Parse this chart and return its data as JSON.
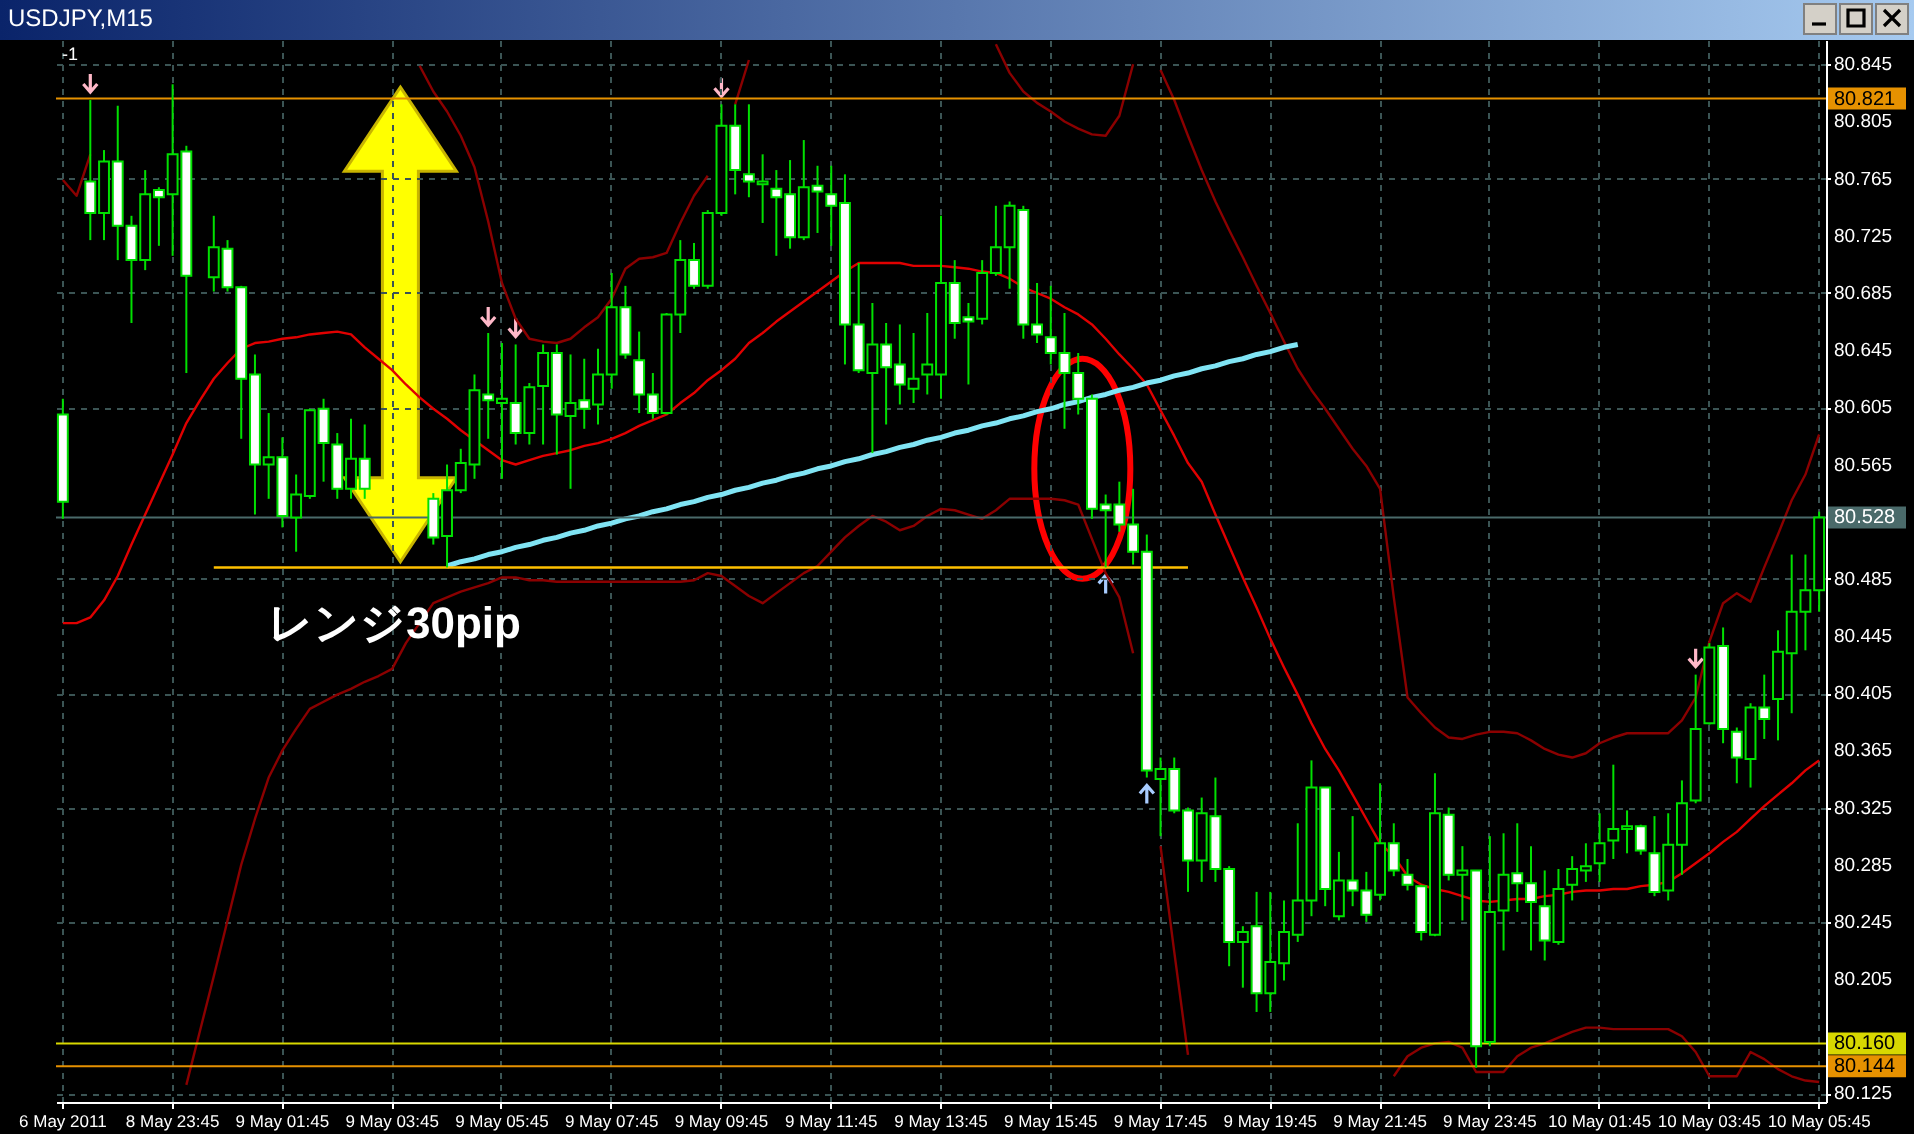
{
  "chart_data": {
    "type": "candlestick",
    "title": "USDJPY,M15",
    "annotations": [
      "レンジ30pip",
      "-1"
    ],
    "categories": [
      "6 May 2011",
      null,
      null,
      null,
      null,
      null,
      null,
      null,
      "8 May 23:45",
      null,
      null,
      null,
      null,
      null,
      null,
      null,
      "9 May 01:45",
      null,
      null,
      null,
      null,
      null,
      null,
      null,
      "9 May 03:45",
      null,
      null,
      null,
      null,
      null,
      null,
      null,
      "9 May 05:45",
      null,
      null,
      null,
      null,
      null,
      null,
      null,
      "9 May 07:45",
      null,
      null,
      null,
      null,
      null,
      null,
      null,
      "9 May 09:45",
      null,
      null,
      null,
      null,
      null,
      null,
      null,
      "9 May 11:45",
      null,
      null,
      null,
      null,
      null,
      null,
      null,
      "9 May 13:45",
      null,
      null,
      null,
      null,
      null,
      null,
      null,
      "9 May 15:45",
      null,
      null,
      null,
      null,
      null,
      null,
      null,
      "9 May 17:45",
      null,
      null,
      null,
      null,
      null,
      null,
      null,
      "9 May 19:45",
      null,
      null,
      null,
      null,
      null,
      null,
      null,
      "9 May 21:45",
      null,
      null,
      null,
      null,
      null,
      null,
      null,
      "9 May 23:45",
      null,
      null,
      null,
      null,
      null,
      null,
      null,
      "10 May 01:45",
      null,
      null,
      null,
      null,
      null,
      null,
      null,
      "10 May 03:45",
      null,
      null,
      null,
      null,
      null,
      null,
      null,
      "10 May 05:45"
    ],
    "ylim": [
      80.119,
      80.862
    ],
    "yticks": [
      80.845,
      80.805,
      80.765,
      80.725,
      80.685,
      80.645,
      80.605,
      80.565,
      80.485,
      80.445,
      80.405,
      80.365,
      80.325,
      80.285,
      80.245,
      80.205,
      80.125
    ],
    "grid": true,
    "ref_lines": [
      {
        "axis": "y",
        "value": 80.821,
        "label": "80.821",
        "color": "#e69100"
      },
      {
        "axis": "y",
        "value": 80.528,
        "label": "80.528",
        "color": "#4a6a6a"
      },
      {
        "axis": "y",
        "value": 80.16,
        "label": "80.160",
        "color": "#d8d800"
      },
      {
        "axis": "y",
        "value": 80.144,
        "label": "80.144",
        "color": "#e69100"
      }
    ],
    "series": [
      {
        "type": "line",
        "color": "#8b0000",
        "values": [
          80.764,
          80.753,
          80.782,
          null,
          null,
          null,
          null,
          null,
          null,
          null,
          null,
          null,
          null,
          null,
          null,
          null,
          null,
          null,
          null,
          null,
          null,
          null,
          null,
          null,
          null,
          null,
          80.844,
          80.826,
          80.812,
          80.795,
          80.773,
          80.735,
          80.692,
          80.667,
          80.653,
          80.651,
          80.65,
          80.653,
          80.661,
          80.668,
          80.681,
          80.702,
          80.709,
          80.71,
          80.713,
          80.734,
          80.753,
          80.767,
          null,
          80.817,
          80.848,
          null,
          null,
          null,
          null,
          null,
          null,
          null,
          null,
          null,
          null,
          null,
          null,
          null,
          null,
          null,
          null,
          null,
          80.859,
          80.839,
          80.826,
          80.818,
          80.812,
          80.805,
          80.8,
          80.796,
          80.795,
          80.809,
          80.845,
          null,
          80.841,
          80.82,
          80.795,
          80.771,
          80.749,
          80.729,
          80.71,
          80.69,
          80.671,
          80.651,
          80.632,
          80.617,
          80.604,
          80.59,
          80.576,
          80.564,
          80.548,
          80.472,
          80.402,
          80.391,
          80.381,
          80.374,
          80.373,
          80.376,
          80.378,
          80.378,
          80.377,
          80.372,
          80.366,
          80.362,
          80.36,
          80.363,
          80.37,
          80.374,
          80.377,
          80.377,
          80.377,
          80.377,
          80.386,
          80.402,
          80.441,
          80.468,
          80.475,
          80.469,
          80.493,
          80.516,
          80.54,
          80.558,
          80.586
        ]
      },
      {
        "type": "line",
        "color": "#e00000",
        "values": [
          80.454,
          80.454,
          80.458,
          80.47,
          80.487,
          80.509,
          80.53,
          80.551,
          80.572,
          80.594,
          80.61,
          80.625,
          80.636,
          80.646,
          80.65,
          80.651,
          80.653,
          80.654,
          80.656,
          80.657,
          80.658,
          80.656,
          80.647,
          80.639,
          80.631,
          80.621,
          80.612,
          80.604,
          80.597,
          80.589,
          80.582,
          80.575,
          80.568,
          80.565,
          80.568,
          80.571,
          80.573,
          80.575,
          80.578,
          80.58,
          80.583,
          80.587,
          80.592,
          80.596,
          80.6,
          80.608,
          80.615,
          80.624,
          80.631,
          80.639,
          80.65,
          80.657,
          80.665,
          80.672,
          80.679,
          80.686,
          80.693,
          80.7,
          80.706,
          80.706,
          80.706,
          80.706,
          80.704,
          80.704,
          80.704,
          80.703,
          80.702,
          80.7,
          80.699,
          80.695,
          80.689,
          80.685,
          80.681,
          80.675,
          80.67,
          80.663,
          80.653,
          80.642,
          80.632,
          80.621,
          80.603,
          80.585,
          80.566,
          80.553,
          80.53,
          80.508,
          80.486,
          80.465,
          80.443,
          80.423,
          80.404,
          80.384,
          80.366,
          80.351,
          80.334,
          80.317,
          80.3,
          80.291,
          80.277,
          80.271,
          80.268,
          80.266,
          80.263,
          80.26,
          80.259,
          80.26,
          80.261,
          80.261,
          80.263,
          80.264,
          80.266,
          80.267,
          80.267,
          80.268,
          80.268,
          80.27,
          80.271,
          80.273,
          80.279,
          80.286,
          80.293,
          80.301,
          80.308,
          80.317,
          80.326,
          80.334,
          80.342,
          80.351,
          80.358
        ]
      },
      {
        "type": "line",
        "color": "#8b0000",
        "values": [
          null,
          null,
          null,
          null,
          null,
          null,
          null,
          null,
          null,
          80.131,
          80.169,
          80.207,
          80.246,
          80.285,
          80.317,
          80.346,
          80.365,
          80.38,
          80.394,
          80.399,
          80.404,
          80.408,
          80.413,
          80.417,
          80.422,
          80.44,
          80.454,
          80.468,
          80.472,
          80.476,
          80.479,
          80.482,
          80.486,
          80.486,
          80.484,
          80.484,
          80.483,
          80.483,
          80.483,
          80.483,
          80.483,
          80.483,
          80.483,
          80.483,
          80.483,
          80.483,
          80.484,
          80.489,
          80.487,
          80.48,
          80.473,
          80.468,
          80.475,
          80.482,
          80.489,
          80.494,
          80.504,
          80.514,
          80.522,
          80.529,
          80.525,
          80.519,
          80.522,
          80.529,
          80.534,
          80.533,
          80.53,
          80.527,
          80.533,
          80.541,
          80.541,
          80.541,
          80.541,
          80.54,
          80.537,
          80.513,
          80.489,
          80.472,
          80.433,
          null,
          80.298,
          80.224,
          80.152,
          null,
          null,
          null,
          null,
          null,
          null,
          null,
          null,
          null,
          null,
          null,
          null,
          null,
          null,
          80.137,
          80.151,
          80.157,
          80.16,
          80.161,
          80.157,
          80.14,
          80.14,
          80.14,
          80.151,
          80.157,
          80.16,
          80.164,
          80.168,
          80.171,
          80.171,
          80.17,
          80.17,
          80.17,
          80.17,
          80.17,
          80.165,
          80.154,
          80.137,
          80.137,
          80.137,
          80.154,
          80.149,
          80.142,
          80.137,
          80.134,
          80.133
        ]
      },
      {
        "type": "line",
        "color": "#80e4f4",
        "values": [
          null,
          null,
          null,
          null,
          null,
          null,
          null,
          null,
          null,
          null,
          null,
          null,
          null,
          null,
          null,
          null,
          null,
          null,
          null,
          null,
          null,
          null,
          null,
          null,
          null,
          null,
          null,
          null,
          80.494,
          80.497,
          80.499,
          80.502,
          80.504,
          80.507,
          80.509,
          80.512,
          80.514,
          80.517,
          80.519,
          80.522,
          80.524,
          80.527,
          80.529,
          80.532,
          80.534,
          80.537,
          80.539,
          80.542,
          80.544,
          80.547,
          80.549,
          80.552,
          80.554,
          80.557,
          80.559,
          80.562,
          80.564,
          80.567,
          80.569,
          80.572,
          80.574,
          80.577,
          80.579,
          80.582,
          80.584,
          80.587,
          80.589,
          80.592,
          80.594,
          80.597,
          80.599,
          80.602,
          80.604,
          80.607,
          80.609,
          80.612,
          80.614,
          80.617,
          80.619,
          80.622,
          80.624,
          80.627,
          80.629,
          80.632,
          80.634,
          80.637,
          80.639,
          80.642,
          80.644,
          80.647,
          80.649,
          null,
          null,
          null,
          null,
          null,
          null,
          null,
          null,
          null,
          null,
          null,
          null,
          null,
          null,
          null,
          null,
          null,
          null,
          null,
          null,
          null,
          null,
          null,
          null,
          null,
          null,
          null,
          null,
          null,
          null,
          null,
          null,
          null,
          null,
          null,
          null,
          null,
          null
        ]
      },
      {
        "type": "line",
        "color": "#ffc000",
        "values": [
          null,
          null,
          null,
          null,
          null,
          null,
          null,
          null,
          null,
          null,
          null,
          80.493,
          80.493,
          80.493,
          80.493,
          80.493,
          80.493,
          80.493,
          80.493,
          80.493,
          80.493,
          80.493,
          80.493,
          80.493,
          80.493,
          80.493,
          80.493,
          80.493,
          80.493,
          80.493,
          80.493,
          80.493,
          80.493,
          80.493,
          80.493,
          80.493,
          80.493,
          80.493,
          80.493,
          80.493,
          80.493,
          80.493,
          80.493,
          80.493,
          80.493,
          80.493,
          80.493,
          80.493,
          80.493,
          80.493,
          80.493,
          80.493,
          80.493,
          80.493,
          80.493,
          80.493,
          80.493,
          80.493,
          80.493,
          80.493,
          80.493,
          80.493,
          80.493,
          80.493,
          80.493,
          80.493,
          80.493,
          80.493,
          80.493,
          80.493,
          80.493,
          80.493,
          80.493,
          80.493,
          80.493,
          80.493,
          80.493,
          80.493,
          80.493,
          80.493,
          80.493,
          80.493,
          80.493,
          null,
          null,
          null,
          null,
          null,
          null,
          null,
          null,
          null,
          null,
          null,
          null,
          null,
          null,
          null,
          null,
          null,
          null,
          null,
          null,
          null,
          null,
          null,
          null,
          null,
          null,
          null,
          null,
          null,
          null,
          null,
          null,
          null,
          null,
          null,
          null,
          null,
          null,
          null,
          null,
          null,
          null,
          null,
          null,
          null,
          null
        ]
      },
      {
        "color": "#00e000",
        "ohlc": [
          [
            80.6,
            80.611,
            80.527,
            80.539
          ],
          null,
          [
            80.763,
            80.82,
            80.722,
            80.741
          ],
          [
            80.741,
            80.785,
            80.722,
            80.777
          ],
          [
            80.777,
            80.816,
            80.708,
            80.732
          ],
          [
            80.732,
            80.739,
            80.664,
            80.708
          ],
          [
            80.708,
            80.771,
            80.701,
            80.754
          ],
          [
            80.757,
            80.759,
            80.718,
            80.752
          ],
          [
            80.754,
            80.831,
            80.711,
            80.782
          ],
          [
            80.784,
            80.788,
            80.629,
            80.697
          ],
          null,
          [
            80.696,
            80.739,
            80.686,
            80.717
          ],
          [
            80.716,
            80.722,
            80.686,
            80.689
          ],
          [
            80.689,
            80.69,
            80.583,
            80.625
          ],
          [
            80.628,
            80.642,
            80.53,
            80.565
          ],
          [
            80.565,
            80.601,
            80.541,
            80.57
          ],
          [
            80.57,
            80.584,
            80.521,
            80.529
          ],
          [
            80.528,
            80.558,
            80.504,
            80.544
          ],
          [
            80.543,
            80.604,
            80.541,
            80.603
          ],
          [
            80.604,
            80.611,
            80.553,
            80.58
          ],
          [
            80.579,
            80.587,
            80.541,
            80.548
          ],
          [
            80.548,
            80.597,
            80.541,
            80.569
          ],
          [
            80.569,
            80.593,
            80.541,
            80.548
          ],
          null,
          null,
          null,
          null,
          [
            80.541,
            80.545,
            80.509,
            80.514
          ],
          [
            80.515,
            80.565,
            80.493,
            80.547
          ],
          [
            80.547,
            80.576,
            80.545,
            80.566
          ],
          [
            80.565,
            80.628,
            80.555,
            80.617
          ],
          [
            80.614,
            80.657,
            80.583,
            80.61
          ],
          [
            80.608,
            80.65,
            80.555,
            80.611
          ],
          [
            80.608,
            80.649,
            80.579,
            80.587
          ],
          [
            80.587,
            80.622,
            80.579,
            80.619
          ],
          [
            80.62,
            80.649,
            80.579,
            80.643
          ],
          [
            80.643,
            80.649,
            80.572,
            80.6
          ],
          [
            80.599,
            80.642,
            80.548,
            80.608
          ],
          [
            80.61,
            80.639,
            80.59,
            80.604
          ],
          [
            80.607,
            80.646,
            80.593,
            80.628
          ],
          [
            80.628,
            80.699,
            80.618,
            80.675
          ],
          [
            80.675,
            80.69,
            80.639,
            80.642
          ],
          [
            80.638,
            80.658,
            80.601,
            80.614
          ],
          [
            80.614,
            80.629,
            80.597,
            80.601
          ],
          [
            80.601,
            80.671,
            80.6,
            80.67
          ],
          [
            80.67,
            80.722,
            80.657,
            80.708
          ],
          [
            80.708,
            80.72,
            80.688,
            80.69
          ],
          [
            80.69,
            80.743,
            80.688,
            80.741
          ],
          [
            80.741,
            80.817,
            80.739,
            80.802
          ],
          [
            80.802,
            80.817,
            80.754,
            80.771
          ],
          [
            80.768,
            80.817,
            80.752,
            80.763
          ],
          [
            80.761,
            80.782,
            80.734,
            80.763
          ],
          [
            80.758,
            80.771,
            80.711,
            80.752
          ],
          [
            80.754,
            80.778,
            80.716,
            80.724
          ],
          [
            80.724,
            80.792,
            80.722,
            80.759
          ],
          [
            80.76,
            80.774,
            80.727,
            80.756
          ],
          [
            80.754,
            80.774,
            80.718,
            80.746
          ],
          [
            80.748,
            80.768,
            80.635,
            80.663
          ],
          [
            80.663,
            80.706,
            80.629,
            80.631
          ],
          [
            80.629,
            80.678,
            80.573,
            80.649
          ],
          [
            80.649,
            80.664,
            80.593,
            80.633
          ],
          [
            80.635,
            80.663,
            80.607,
            80.621
          ],
          [
            80.618,
            80.657,
            80.608,
            80.625
          ],
          [
            80.628,
            80.671,
            80.614,
            80.635
          ],
          [
            80.628,
            80.739,
            80.611,
            80.692
          ],
          [
            80.692,
            80.708,
            80.653,
            80.664
          ],
          [
            80.668,
            80.678,
            80.621,
            80.665
          ],
          [
            80.667,
            80.708,
            80.663,
            80.699
          ],
          [
            80.699,
            80.746,
            80.697,
            80.717
          ],
          [
            80.717,
            80.749,
            80.688,
            80.746
          ],
          [
            80.743,
            80.746,
            80.653,
            80.663
          ],
          [
            80.663,
            80.692,
            80.65,
            80.656
          ],
          [
            80.654,
            80.69,
            80.635,
            80.643
          ],
          [
            80.643,
            80.671,
            80.59,
            80.629
          ],
          [
            80.629,
            80.643,
            80.6,
            80.611
          ],
          [
            80.611,
            80.614,
            80.527,
            80.534
          ],
          [
            80.537,
            80.544,
            80.493,
            80.533
          ],
          [
            80.537,
            80.553,
            80.518,
            80.523
          ],
          [
            80.523,
            80.548,
            80.495,
            80.504
          ],
          [
            80.504,
            80.516,
            80.346,
            80.351
          ],
          [
            80.345,
            80.36,
            80.305,
            80.352
          ],
          [
            80.352,
            80.36,
            80.321,
            80.323
          ],
          [
            80.323,
            80.325,
            80.266,
            80.288
          ],
          [
            80.288,
            80.332,
            80.273,
            80.321
          ],
          [
            80.319,
            80.346,
            80.273,
            80.282
          ],
          [
            80.282,
            80.284,
            80.214,
            80.231
          ],
          [
            80.231,
            80.242,
            80.199,
            80.238
          ],
          [
            80.242,
            80.266,
            80.182,
            80.195
          ],
          [
            80.195,
            80.266,
            80.182,
            80.217
          ],
          [
            80.216,
            80.26,
            80.204,
            80.238
          ],
          [
            80.236,
            80.314,
            80.231,
            80.26
          ],
          [
            80.26,
            80.358,
            80.249,
            80.339
          ],
          [
            80.339,
            80.339,
            80.256,
            80.268
          ],
          [
            80.249,
            80.294,
            80.246,
            80.274
          ],
          [
            80.274,
            80.319,
            80.256,
            80.267
          ],
          [
            80.267,
            80.28,
            80.245,
            80.25
          ],
          [
            80.264,
            80.342,
            80.26,
            80.3
          ],
          [
            80.3,
            80.314,
            80.277,
            80.281
          ],
          [
            80.278,
            80.289,
            80.267,
            80.271
          ],
          [
            80.27,
            80.271,
            80.232,
            80.238
          ],
          [
            80.236,
            80.349,
            80.235,
            80.321
          ],
          [
            80.32,
            80.325,
            80.274,
            80.278
          ],
          [
            80.278,
            80.298,
            80.246,
            80.281
          ],
          [
            80.281,
            80.281,
            80.143,
            80.158
          ],
          [
            80.161,
            80.305,
            80.158,
            80.252
          ],
          [
            80.253,
            80.307,
            80.225,
            80.278
          ],
          [
            80.279,
            80.314,
            80.252,
            80.272
          ],
          [
            80.272,
            80.298,
            80.225,
            80.259
          ],
          [
            80.256,
            80.281,
            80.218,
            80.232
          ],
          [
            80.231,
            80.282,
            80.229,
            80.268
          ],
          [
            80.271,
            80.291,
            80.26,
            80.282
          ],
          [
            80.281,
            80.3,
            80.273,
            80.284
          ],
          [
            80.286,
            80.321,
            80.273,
            80.3
          ],
          [
            80.302,
            80.355,
            80.289,
            80.31
          ],
          [
            80.31,
            80.323,
            80.293,
            80.312
          ],
          [
            80.312,
            80.313,
            80.292,
            80.295
          ],
          [
            80.293,
            80.319,
            80.263,
            80.266
          ],
          [
            80.267,
            80.321,
            80.26,
            80.299
          ],
          [
            80.299,
            80.344,
            80.278,
            80.328
          ],
          [
            80.33,
            80.418,
            80.328,
            80.38
          ],
          [
            80.384,
            80.44,
            80.383,
            80.437
          ],
          [
            80.438,
            80.451,
            80.37,
            80.38
          ],
          [
            80.378,
            80.381,
            80.342,
            80.36
          ],
          [
            80.359,
            80.398,
            80.339,
            80.395
          ],
          [
            80.395,
            80.418,
            80.373,
            80.387
          ],
          [
            80.401,
            80.449,
            80.372,
            80.434
          ],
          [
            80.433,
            80.502,
            80.391,
            80.462
          ],
          [
            80.462,
            80.502,
            80.435,
            80.477
          ],
          [
            80.477,
            80.532,
            80.462,
            80.528
          ]
        ]
      }
    ]
  }
}
